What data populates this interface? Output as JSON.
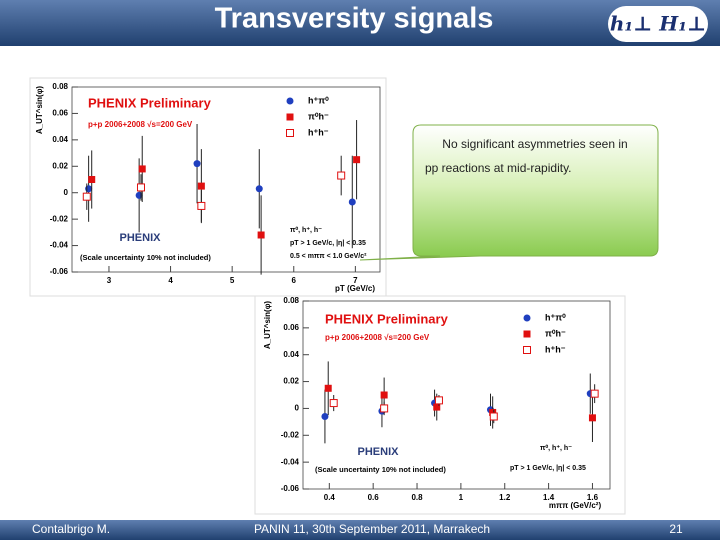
{
  "title": "Transversity signals",
  "logo": "h₁⊥ H₁⊥",
  "callout": [
    "No significant asymmetries seen in",
    "pp reactions at mid-rapidity."
  ],
  "footer": {
    "author": "Contalbrigo M.",
    "event": "PANIN 11, 30th September 2011, Marrakech",
    "page": "21"
  },
  "chart_data": [
    {
      "type": "scatter",
      "title": "PHENIX Preliminary",
      "dataset": "p+p 2006+2008 √s=200 GeV",
      "logo_text": "PHENIX",
      "scale_note": "(Scale uncertainty 10% not included)",
      "cuts": [
        "π⁰, h⁺, h⁻",
        "pT > 1 GeV/c, |η| < 0.35",
        "0.5 < mππ < 1.0 GeV/c²"
      ],
      "x_label": "pT (GeV/c)",
      "y_label": "A_UT^sin(φ)",
      "xlim": [
        2.4,
        7.4
      ],
      "xticks": [
        3,
        4,
        5,
        6,
        7
      ],
      "ylim": [
        -0.06,
        0.08
      ],
      "yticks": [
        -0.06,
        -0.04,
        -0.02,
        0,
        0.02,
        0.04,
        0.06,
        0.08
      ],
      "series": [
        {
          "name": "h⁺π⁰",
          "color": "#1f3fbf",
          "marker": "circle",
          "x": [
            2.67,
            3.49,
            4.43,
            5.44,
            6.95
          ],
          "values": [
            0.003,
            -0.002,
            0.022,
            0.003,
            -0.007
          ],
          "errors": [
            0.025,
            0.028,
            0.03,
            0.03,
            0.035
          ]
        },
        {
          "name": "π⁰h⁻",
          "color": "#e01010",
          "marker": "square",
          "x": [
            2.72,
            3.54,
            4.5,
            5.47,
            7.02
          ],
          "values": [
            0.01,
            0.018,
            0.005,
            -0.032,
            0.025
          ],
          "errors": [
            0.022,
            0.025,
            0.028,
            0.03,
            0.03
          ]
        },
        {
          "name": "h⁺h⁻",
          "color": "#e01010",
          "marker": "open-square",
          "x": [
            2.64,
            3.52,
            4.5,
            6.77
          ],
          "values": [
            -0.003,
            0.004,
            -0.01,
            0.013
          ],
          "errors": [
            0.01,
            0.01,
            0.012,
            0.015
          ]
        }
      ]
    },
    {
      "type": "scatter",
      "title": "PHENIX Preliminary",
      "dataset": "p+p 2006+2008 √s=200 GeV",
      "logo_text": "PHENIX",
      "scale_note": "(Scale uncertainty 10% not included)",
      "cuts": [
        "π⁰, h⁺, h⁻",
        "pT > 1 GeV/c, |η| < 0.35"
      ],
      "x_label": "mππ (GeV/c²)",
      "y_label": "A_UT^sin(φ)",
      "xlim": [
        0.28,
        1.68
      ],
      "xticks": [
        0.4,
        0.6,
        0.8,
        1,
        1.2,
        1.4,
        1.6
      ],
      "ylim": [
        -0.06,
        0.08
      ],
      "yticks": [
        -0.06,
        -0.04,
        -0.02,
        0,
        0.02,
        0.04,
        0.06,
        0.08
      ],
      "series": [
        {
          "name": "h⁺π⁰",
          "color": "#1f3fbf",
          "marker": "circle",
          "x": [
            0.38,
            0.64,
            0.88,
            1.135,
            1.59
          ],
          "values": [
            -0.006,
            -0.002,
            0.004,
            -0.001,
            0.011
          ],
          "errors": [
            0.02,
            0.012,
            0.01,
            0.012,
            0.015
          ]
        },
        {
          "name": "π⁰h⁻",
          "color": "#e01010",
          "marker": "square",
          "x": [
            0.395,
            0.65,
            0.89,
            1.145,
            1.6
          ],
          "values": [
            0.015,
            0.01,
            0.001,
            -0.003,
            -0.007
          ],
          "errors": [
            0.02,
            0.013,
            0.01,
            0.012,
            0.018
          ]
        },
        {
          "name": "h⁺h⁻",
          "color": "#e01010",
          "marker": "open-square",
          "x": [
            0.42,
            0.65,
            0.9,
            1.15,
            1.61
          ],
          "values": [
            0.004,
            0.0,
            0.006,
            -0.006,
            0.011
          ],
          "errors": [
            0.006,
            0.005,
            0.004,
            0.005,
            0.007
          ]
        }
      ]
    }
  ]
}
